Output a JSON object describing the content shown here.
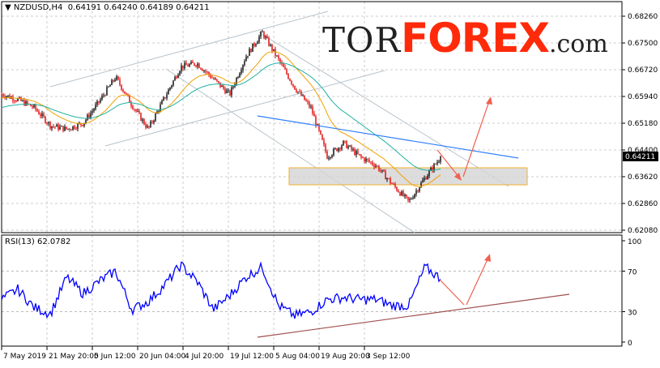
{
  "header": {
    "symbol": "NZDUSD,H4",
    "ohlc": "0.64191 0.64240 0.64189 0.64211"
  },
  "logo": {
    "part1": "TOR",
    "part2": "FOREX",
    "part3": ".com"
  },
  "chart_data": [
    {
      "type": "candlestick",
      "title": "NZDUSD,H4 0.64191 0.64240 0.64189 0.64211",
      "y_ticks": [
        "0.68260",
        "0.67500",
        "0.66720",
        "0.65940",
        "0.65180",
        "0.64400",
        "0.63620",
        "0.62860",
        "0.62080"
      ],
      "ylim": [
        0.6208,
        0.6826
      ],
      "current_price": "0.64211",
      "x_ticks": [
        "7 May 2019",
        "21 May 20:00",
        "5 Jun 12:00",
        "20 Jun 04:00",
        "4 Jul 20:00",
        "19 Jul 12:00",
        "5 Aug 04:00",
        "19 Aug 20:00",
        "3 Sep 12:00"
      ],
      "close_samples": [
        0.6601,
        0.6585,
        0.6562,
        0.651,
        0.65,
        0.6517,
        0.658,
        0.665,
        0.657,
        0.65,
        0.659,
        0.668,
        0.669,
        0.6645,
        0.66,
        0.671,
        0.6779,
        0.67,
        0.662,
        0.656,
        0.642,
        0.646,
        0.642,
        0.6395,
        0.634,
        0.629,
        0.636,
        0.6421
      ],
      "moving_averages": [
        {
          "color": "#f0a000"
        },
        {
          "color": "#20b0a0"
        }
      ],
      "colors": {
        "bull": "#000000",
        "bear": "#e00000"
      }
    },
    {
      "type": "line",
      "title": "RSI(13) 62.0782",
      "y_ticks": [
        "100",
        "70",
        "30",
        "0"
      ],
      "ylim": [
        0,
        100
      ],
      "levels": [
        70,
        30
      ],
      "values": [
        42,
        52,
        34,
        28,
        64,
        48,
        60,
        70,
        32,
        40,
        56,
        76,
        60,
        32,
        46,
        64,
        74,
        36,
        26,
        30,
        42,
        44,
        42,
        42,
        36,
        36,
        74,
        62.08
      ],
      "color": "#0000ff"
    }
  ],
  "rsi_label": "RSI(13) 62.0782"
}
